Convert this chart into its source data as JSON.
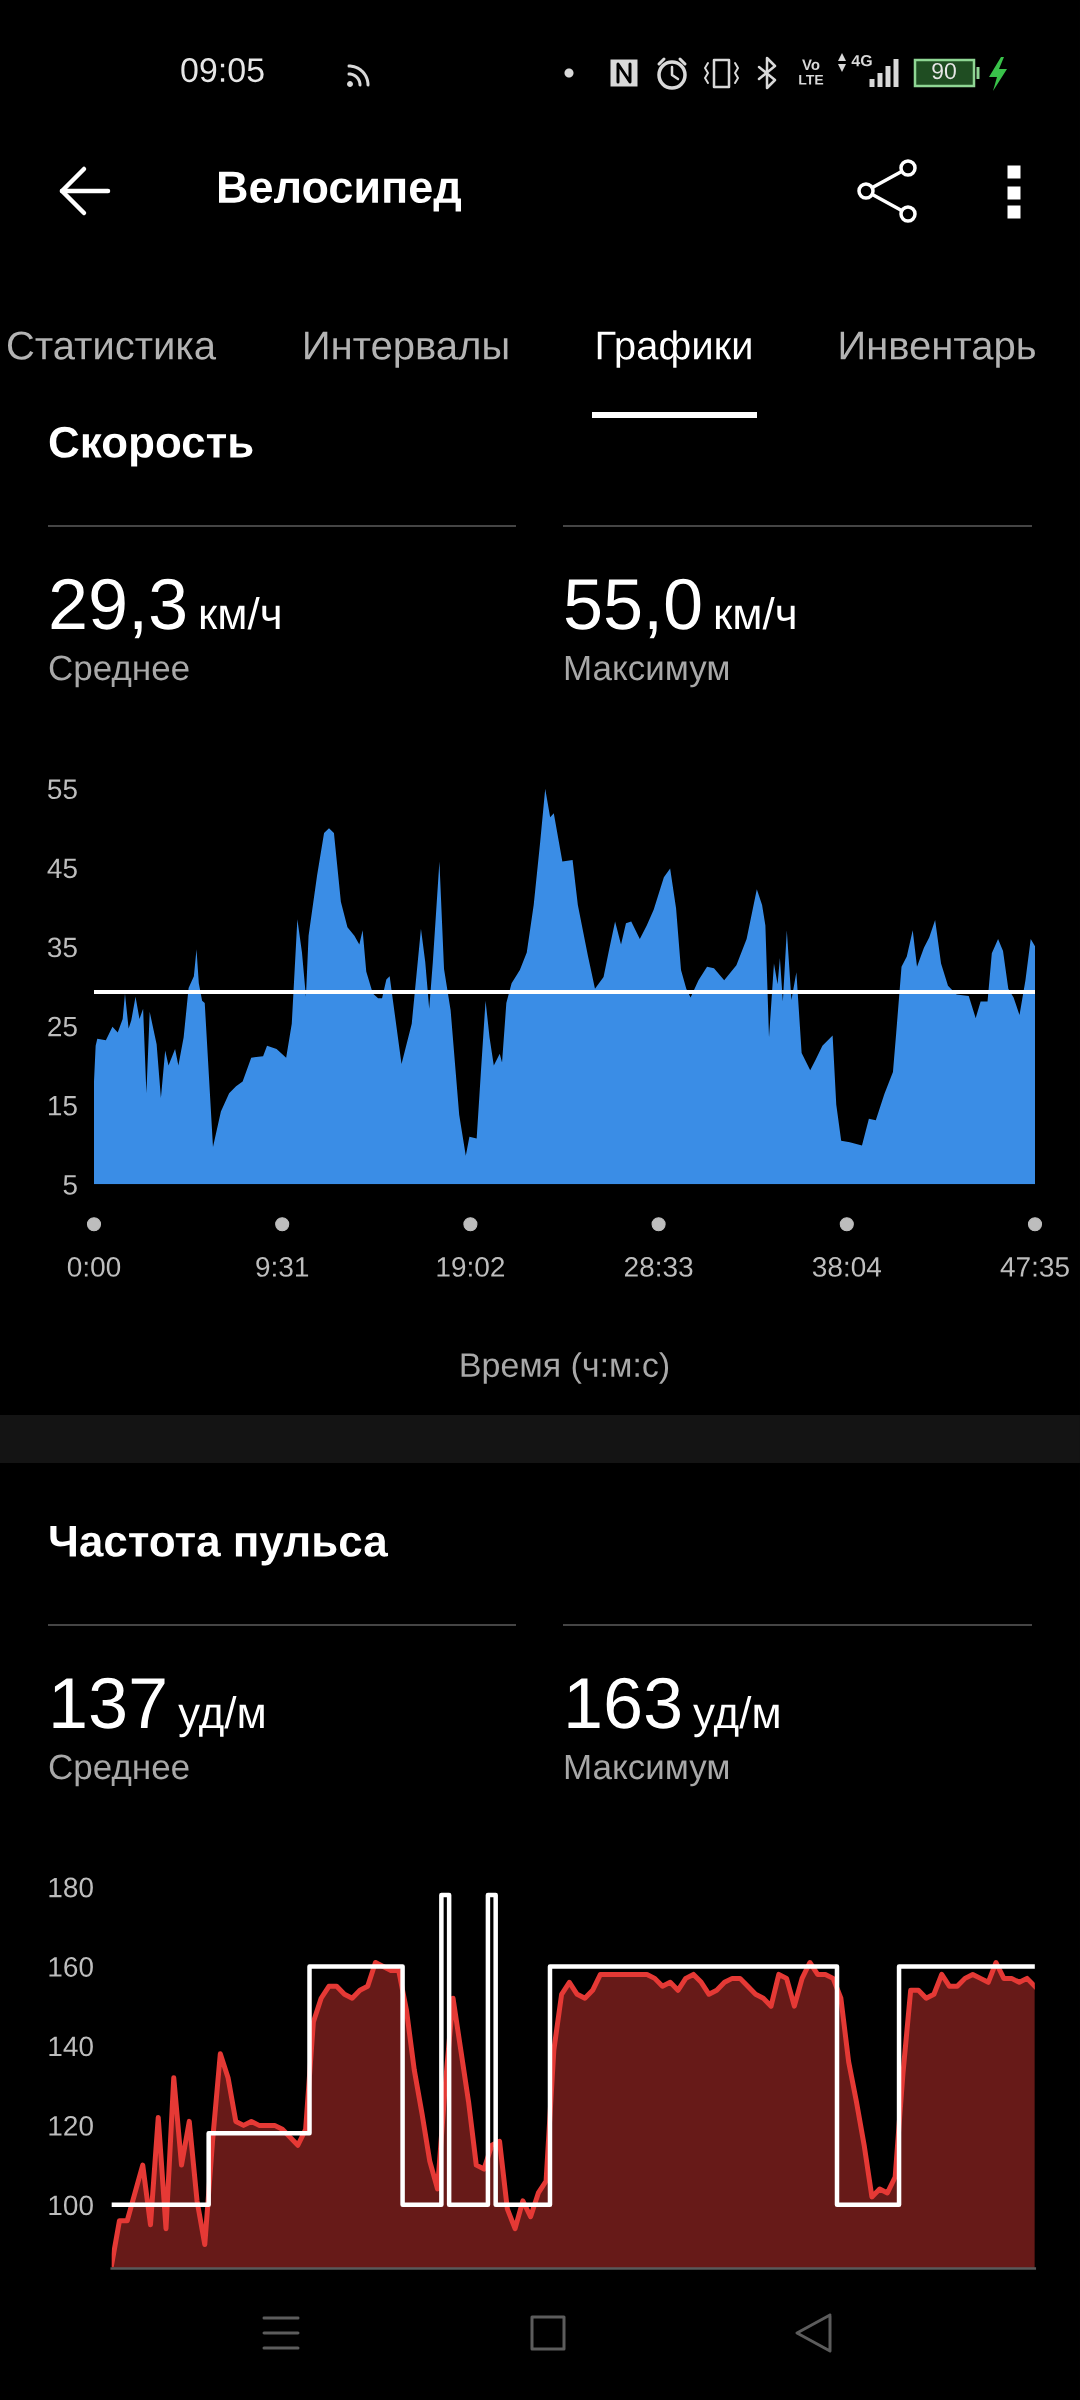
{
  "chart_data": [
    {
      "type": "other",
      "title": "Велосипед",
      "annotations": [
        "09:05",
        "Vo",
        "LTE",
        "4G",
        "90",
        "Статистика",
        "Интервалы",
        "Графики",
        "Инвентарь"
      ]
    },
    {
      "type": "area",
      "title": "Скорость",
      "annotations": [
        "29,3",
        "км/ч",
        "Среднее",
        "55,0",
        "км/ч",
        "Максимум"
      ],
      "xlabel": "Время (ч:м:с)",
      "color": "#3a8de6",
      "x": [
        0,
        5,
        10,
        36,
        56,
        72,
        87,
        94,
        105,
        113,
        126,
        138,
        149,
        159,
        169,
        190,
        203,
        216,
        226,
        246,
        256,
        272,
        287,
        303,
        311,
        318,
        328,
        336,
        361,
        385,
        410,
        431,
        451,
        477,
        513,
        525,
        554,
        583,
        600,
        617,
        631,
        643,
        651,
        677,
        698,
        713,
        728,
        749,
        769,
        790,
        805,
        815,
        826,
        846,
        862,
        874,
        887,
        897,
        933,
        964,
        992,
        1005,
        1017,
        1028,
        1048,
        1062,
        1082,
        1108,
        1128,
        1139,
        1161,
        1174,
        1188,
        1200,
        1213,
        1231,
        1238,
        1251,
        1267,
        1292,
        1313,
        1334,
        1354,
        1369,
        1384,
        1395,
        1421,
        1452,
        1468,
        1499,
        1520,
        1546,
        1562,
        1581,
        1599,
        1614,
        1630,
        1656,
        1677,
        1698,
        1729,
        1748,
        1766,
        1781,
        1797,
        1810,
        1834,
        1860,
        1881,
        1912,
        1949,
        1980,
        2011,
        2027,
        2037,
        2048,
        2063,
        2074,
        2081,
        2090,
        2102,
        2116,
        2131,
        2147,
        2173,
        2189,
        2210,
        2241,
        2252,
        2267,
        2293,
        2330,
        2351,
        2372,
        2398,
        2424,
        2434,
        2450,
        2466,
        2484,
        2497,
        2518,
        2534,
        2552,
        2570,
        2591,
        2617,
        2654,
        2675,
        2690,
        2711,
        2724,
        2743,
        2758,
        2774,
        2790,
        2808,
        2826,
        2842,
        2855
      ],
      "values": [
        18,
        22.5,
        23.4,
        23.2,
        24.9,
        24.2,
        25.9,
        29.1,
        24.7,
        25.7,
        28.7,
        25.9,
        27.2,
        16.5,
        26.8,
        22.7,
        15.9,
        21.9,
        20.0,
        22.1,
        20.0,
        23.6,
        29.8,
        31.3,
        34.7,
        30.4,
        28.2,
        27.9,
        9.7,
        14.2,
        16.5,
        17.4,
        18.0,
        21.0,
        21.2,
        22.5,
        22.1,
        21.0,
        25.3,
        38.5,
        34.3,
        28.7,
        36.4,
        44.1,
        49.4,
        50.0,
        49.4,
        40.7,
        37.5,
        36.4,
        35.3,
        37.1,
        31.9,
        29.1,
        28.5,
        28.5,
        30.9,
        31.3,
        20.2,
        25.3,
        37.3,
        33.1,
        27.2,
        33.1,
        45.8,
        32.2,
        27.0,
        13.8,
        8.6,
        11.0,
        10.8,
        19.3,
        28.2,
        23.6,
        20.0,
        21.5,
        20.4,
        27.9,
        30.4,
        32.1,
        34.3,
        40.3,
        48.4,
        55.0,
        51.4,
        51.9,
        45.8,
        46.0,
        40.3,
        33.8,
        29.7,
        31.2,
        34.5,
        38.2,
        35.3,
        38.0,
        38.2,
        36.0,
        37.7,
        39.7,
        43.8,
        44.9,
        39.9,
        32.1,
        29.7,
        28.6,
        30.8,
        32.5,
        32.3,
        30.8,
        32.7,
        36.0,
        42.3,
        40.3,
        37.7,
        23.6,
        32.9,
        30.3,
        33.6,
        28.1,
        37.1,
        28.3,
        31.8,
        21.6,
        19.4,
        20.7,
        22.5,
        23.8,
        15.1,
        10.5,
        10.3,
        9.9,
        13.3,
        13.1,
        16.4,
        19.2,
        24.2,
        32.5,
        33.8,
        37.1,
        32.5,
        34.9,
        36.2,
        38.4,
        32.9,
        30.1,
        29.0,
        28.8,
        26.0,
        28.1,
        28.1,
        34.2,
        36.0,
        34.5,
        29.7,
        28.6,
        26.4,
        30.8,
        36.0,
        35.1
      ],
      "xlim": [
        0,
        2855
      ],
      "xticks": [
        {
          "value": 0,
          "label": "0:00"
        },
        {
          "value": 571,
          "label": "9:31"
        },
        {
          "value": 1142,
          "label": "19:02"
        },
        {
          "value": 1713,
          "label": "28:33"
        },
        {
          "value": 2284,
          "label": "38:04"
        },
        {
          "value": 2855,
          "label": "47:35"
        }
      ],
      "ylim": [
        5,
        55
      ],
      "yticks": [
        5,
        15,
        25,
        35,
        45,
        55
      ],
      "ref_lines": [
        {
          "axis": "y",
          "value": 29.3,
          "color": "#ffffff"
        }
      ]
    },
    {
      "type": "area",
      "title": "Частота пульса",
      "annotations": [
        "137",
        "уд/м",
        "Среднее",
        "163",
        "уд/м",
        "Максимум"
      ],
      "categories": [
        null,
        null,
        null,
        null,
        null,
        null,
        null,
        null,
        null,
        null,
        null,
        null,
        null,
        null,
        null,
        null,
        null,
        null,
        null,
        null,
        null,
        null,
        null,
        null,
        null,
        null,
        null,
        null,
        null,
        null,
        null,
        null,
        null,
        null,
        null,
        null,
        null,
        null,
        null,
        null,
        null,
        null,
        null,
        null,
        null,
        null,
        null,
        null,
        null,
        null,
        null,
        null,
        null,
        null,
        null,
        null,
        null,
        null,
        null,
        null,
        null,
        null,
        null,
        null,
        null,
        null,
        null,
        null,
        null,
        null,
        null,
        null,
        null,
        null,
        null,
        null,
        null,
        null,
        null,
        null,
        null,
        null,
        null,
        null,
        null,
        null,
        null,
        null,
        null,
        null,
        null,
        null,
        null,
        null,
        null,
        null,
        null,
        null,
        null,
        null,
        null,
        null,
        null,
        null,
        null,
        null,
        null,
        null,
        null,
        null,
        null,
        null,
        null,
        null,
        null,
        null,
        null,
        null,
        null,
        null
      ],
      "series": [
        {
          "type": "area",
          "color": "#e53935",
          "values": [
            85,
            96,
            96,
            103,
            110,
            95,
            122,
            94,
            132,
            110,
            121,
            101,
            90,
            116,
            138,
            132,
            121,
            120,
            121,
            120,
            120,
            120,
            119,
            117,
            115,
            119,
            146,
            152,
            155,
            155,
            153,
            152,
            154,
            155,
            161,
            160,
            159,
            159,
            149,
            134,
            123,
            111,
            104,
            130,
            152,
            139,
            126,
            110,
            109,
            115,
            116,
            99,
            94,
            101,
            97,
            103,
            106,
            139,
            153,
            156,
            153,
            152,
            154,
            158,
            158,
            158,
            158,
            158,
            158,
            158,
            157,
            155,
            156,
            154,
            157,
            158,
            156,
            153,
            154,
            156,
            157,
            157,
            155,
            153,
            152,
            150,
            158,
            157,
            150,
            157,
            161,
            158,
            158,
            157,
            152,
            136,
            126,
            115,
            102,
            104,
            103,
            107,
            133,
            154,
            154,
            152,
            153,
            158,
            155,
            155,
            157,
            158,
            157,
            156,
            161,
            157,
            157,
            156,
            157,
            155
          ]
        },
        {
          "type": "step",
          "color": "#ffffff",
          "values": [
            100,
            100,
            100,
            100,
            100,
            100,
            100,
            100,
            100,
            100,
            100,
            100,
            100,
            118,
            118,
            118,
            118,
            118,
            118,
            118,
            118,
            118,
            118,
            118,
            118,
            118,
            160,
            160,
            160,
            160,
            160,
            160,
            160,
            160,
            160,
            160,
            160,
            160,
            100,
            100,
            100,
            100,
            100,
            178,
            100,
            100,
            100,
            100,
            100,
            178,
            100,
            100,
            100,
            100,
            100,
            100,
            100,
            160,
            160,
            160,
            160,
            160,
            160,
            160,
            160,
            160,
            160,
            160,
            160,
            160,
            160,
            160,
            160,
            160,
            160,
            160,
            160,
            160,
            160,
            160,
            160,
            160,
            160,
            160,
            160,
            160,
            160,
            160,
            160,
            160,
            160,
            160,
            160,
            160,
            100,
            100,
            100,
            100,
            100,
            100,
            100,
            100,
            160,
            160,
            160,
            160,
            160,
            160,
            160,
            160,
            160,
            160,
            160,
            160,
            160,
            160,
            160,
            160,
            160,
            160
          ]
        }
      ],
      "ylim": [
        84,
        180
      ],
      "yticks": [
        100,
        120,
        140,
        160,
        180
      ],
      "tick_labels": "y"
    }
  ]
}
